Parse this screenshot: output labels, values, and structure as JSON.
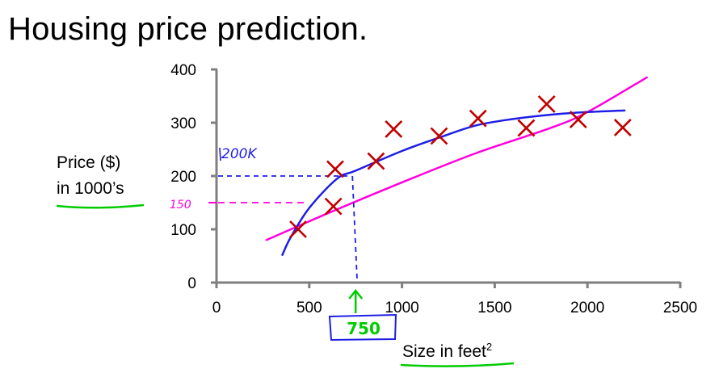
{
  "title": "Housing price prediction.",
  "ylabel_line1": "Price ($)",
  "ylabel_line2": "in 1000’s",
  "chart_data": {
    "type": "scatter",
    "title": "Housing price prediction.",
    "xlabel": "Size in feet",
    "xlabel_sup": "2",
    "ylabel": "Price ($) in 1000’s",
    "xlim": [
      0,
      2500
    ],
    "ylim": [
      0,
      400
    ],
    "x_ticks": [
      0,
      500,
      1000,
      1500,
      2000,
      2500
    ],
    "y_ticks": [
      0,
      100,
      200,
      300,
      400
    ],
    "grid": false,
    "points": [
      {
        "x": 440,
        "y": 100
      },
      {
        "x": 630,
        "y": 143
      },
      {
        "x": 640,
        "y": 213
      },
      {
        "x": 860,
        "y": 228
      },
      {
        "x": 955,
        "y": 288
      },
      {
        "x": 1200,
        "y": 275
      },
      {
        "x": 1410,
        "y": 308
      },
      {
        "x": 1670,
        "y": 290
      },
      {
        "x": 1780,
        "y": 335
      },
      {
        "x": 1950,
        "y": 306
      },
      {
        "x": 2190,
        "y": 291
      }
    ],
    "curves": [
      {
        "color": "#ff00dd",
        "points": [
          [
            270,
            80
          ],
          [
            600,
            130
          ],
          [
            1000,
            188
          ],
          [
            1400,
            243
          ],
          [
            1800,
            290
          ],
          [
            2000,
            320
          ],
          [
            2320,
            385
          ]
        ]
      },
      {
        "color": "#1e1ee6",
        "points": [
          [
            355,
            52
          ],
          [
            400,
            85
          ],
          [
            500,
            140
          ],
          [
            650,
            195
          ],
          [
            750,
            210
          ],
          [
            1000,
            247
          ],
          [
            1200,
            272
          ],
          [
            1400,
            295
          ],
          [
            1600,
            307
          ],
          [
            1800,
            315
          ],
          [
            2000,
            320
          ],
          [
            2200,
            323
          ]
        ]
      }
    ],
    "annotations": {
      "marker_color": "#c00000",
      "y200_label": "200K",
      "y150_label": "150",
      "x750_label": "750",
      "blue_color": "#1e1ee6",
      "pink_color": "#ff00dd",
      "green_color": "#00cc00"
    }
  }
}
